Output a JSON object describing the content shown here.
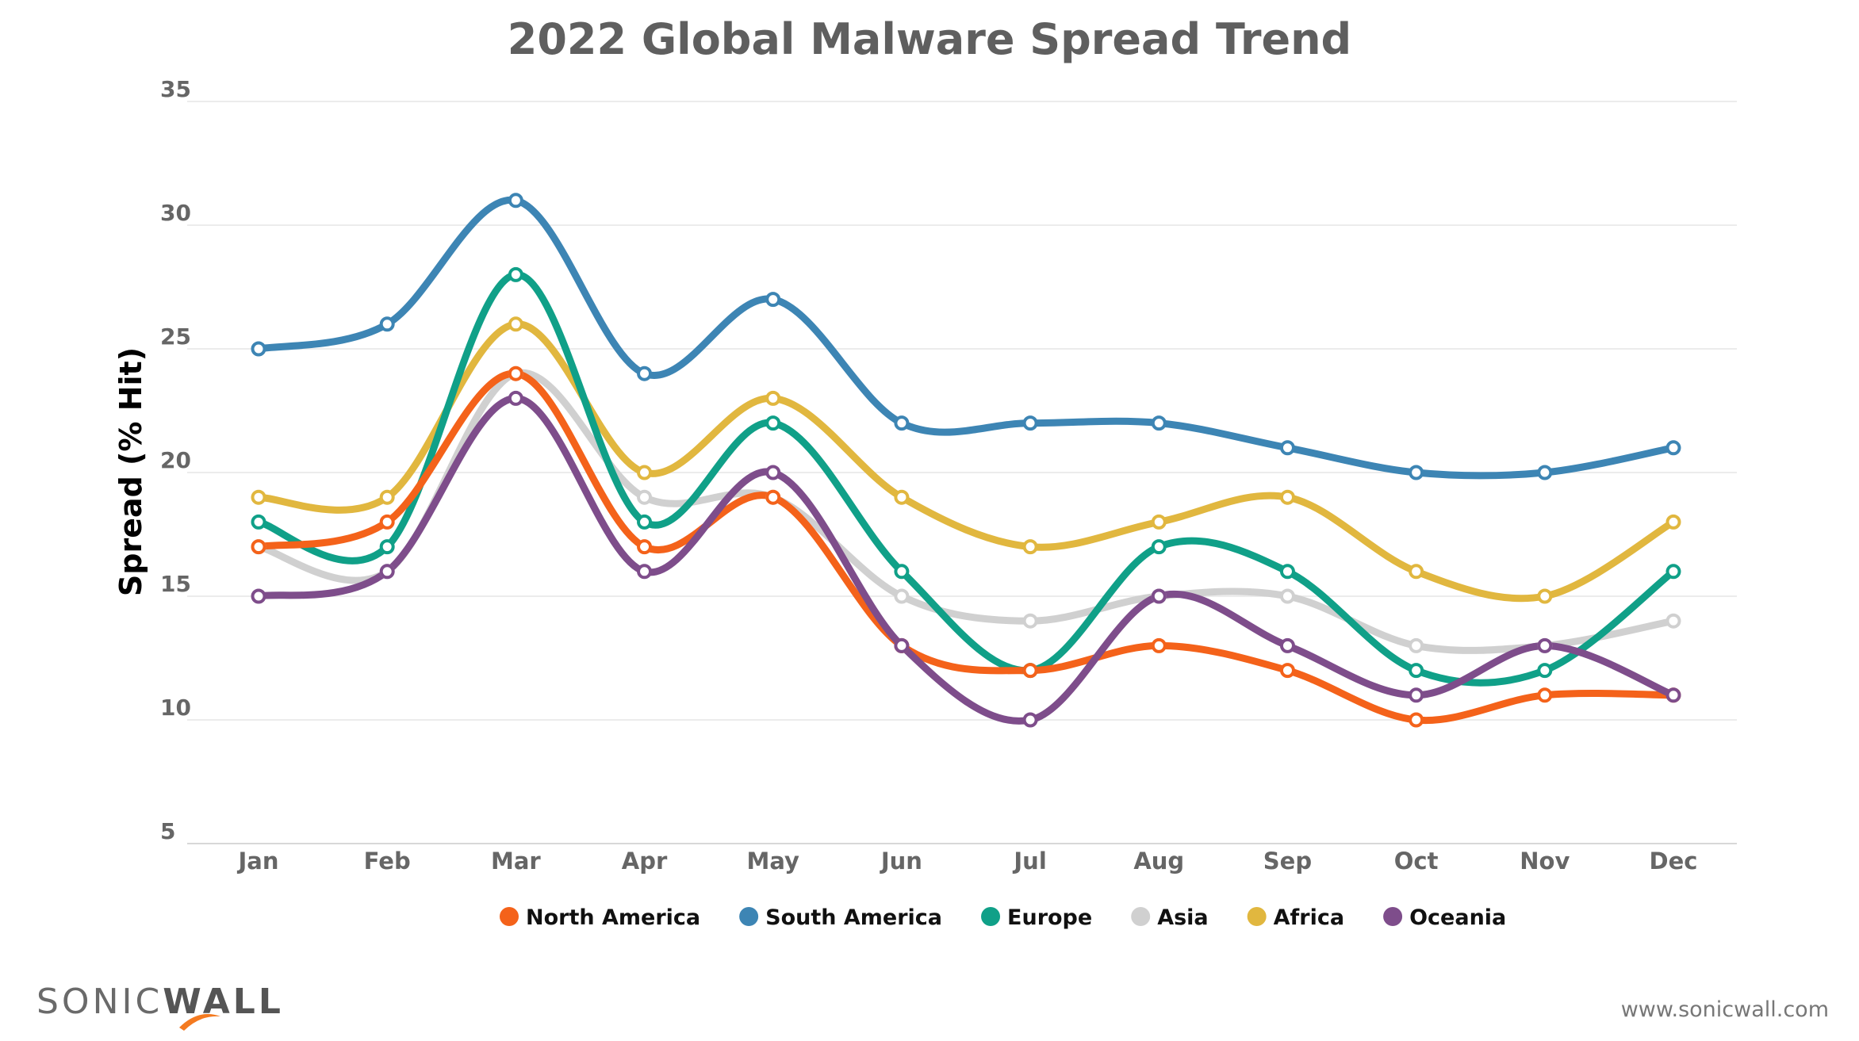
{
  "chart_data": {
    "type": "line",
    "title": "2022 Global Malware Spread Trend",
    "xlabel": "",
    "ylabel": "Spread (% Hit)",
    "ylim": [
      5,
      35
    ],
    "yticks": [
      5,
      10,
      15,
      20,
      25,
      30,
      35
    ],
    "grid": true,
    "legend_position": "bottom",
    "categories": [
      "Jan",
      "Feb",
      "Mar",
      "Apr",
      "May",
      "Jun",
      "Jul",
      "Aug",
      "Sep",
      "Oct",
      "Nov",
      "Dec"
    ],
    "series": [
      {
        "name": "North America",
        "color": "#f4621a",
        "values": [
          17,
          18,
          24,
          17,
          19,
          13,
          12,
          13,
          12,
          10,
          11,
          11
        ]
      },
      {
        "name": "South America",
        "color": "#3d85b4",
        "values": [
          25,
          26,
          31,
          24,
          27,
          22,
          22,
          22,
          21,
          20,
          20,
          21
        ]
      },
      {
        "name": "Europe",
        "color": "#10a088",
        "values": [
          18,
          17,
          28,
          18,
          22,
          16,
          12,
          17,
          16,
          12,
          12,
          16
        ]
      },
      {
        "name": "Asia",
        "color": "#d0d0d0",
        "values": [
          17,
          16,
          24,
          19,
          19,
          15,
          14,
          15,
          15,
          13,
          13,
          14
        ]
      },
      {
        "name": "Africa",
        "color": "#e1b73f",
        "values": [
          19,
          19,
          26,
          20,
          23,
          19,
          17,
          18,
          19,
          16,
          15,
          18
        ]
      },
      {
        "name": "Oceania",
        "color": "#7e4d8b",
        "values": [
          15,
          16,
          23,
          16,
          20,
          13,
          10,
          15,
          13,
          11,
          13,
          11
        ]
      }
    ]
  },
  "footer": {
    "logo_text_light": "SONIC",
    "logo_text_bold": "WALL",
    "website": "www.sonicwall.com"
  }
}
